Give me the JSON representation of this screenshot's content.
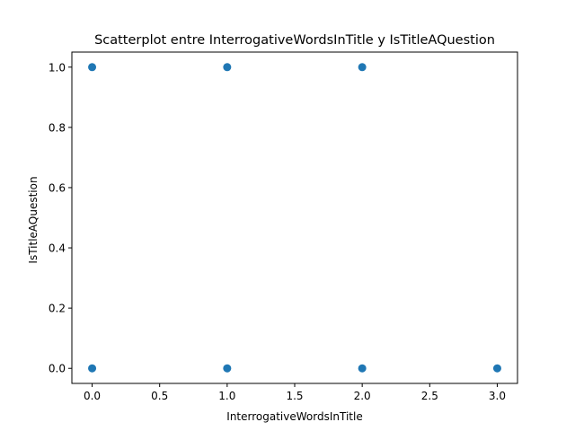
{
  "chart_data": {
    "type": "scatter",
    "title": "Scatterplot entre InterrogativeWordsInTitle y IsTitleAQuestion",
    "xlabel": "InterrogativeWordsInTitle",
    "ylabel": "IsTitleAQuestion",
    "xlim": [
      -0.15,
      3.15
    ],
    "ylim": [
      -0.05,
      1.05
    ],
    "xticks": [
      0.0,
      0.5,
      1.0,
      1.5,
      2.0,
      2.5,
      3.0
    ],
    "xtick_labels": [
      "0.0",
      "0.5",
      "1.0",
      "1.5",
      "2.0",
      "2.5",
      "3.0"
    ],
    "yticks": [
      0.0,
      0.2,
      0.4,
      0.6,
      0.8,
      1.0
    ],
    "ytick_labels": [
      "0.0",
      "0.2",
      "0.4",
      "0.6",
      "0.8",
      "1.0"
    ],
    "grid": false,
    "marker_color": "#1f77b4",
    "points": [
      {
        "x": 0,
        "y": 1
      },
      {
        "x": 1,
        "y": 1
      },
      {
        "x": 2,
        "y": 1
      },
      {
        "x": 0,
        "y": 0
      },
      {
        "x": 1,
        "y": 0
      },
      {
        "x": 2,
        "y": 0
      },
      {
        "x": 3,
        "y": 0
      }
    ]
  }
}
